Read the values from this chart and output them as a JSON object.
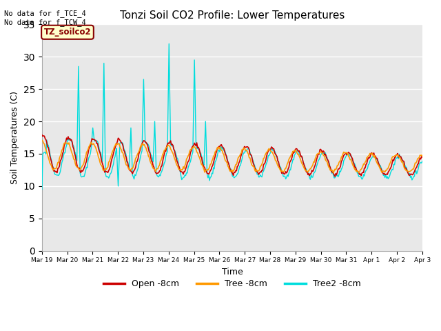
{
  "title": "Tonzi Soil CO2 Profile: Lower Temperatures",
  "xlabel": "Time",
  "ylabel": "Soil Temperatures (C)",
  "ylim": [
    0,
    35
  ],
  "yticks": [
    0,
    5,
    10,
    15,
    20,
    25,
    30,
    35
  ],
  "annotation_text": "No data for f_TCE_4\nNo data for f_TCW_4",
  "legend_label_text": "TZ_soilco2",
  "legend_entries": [
    "Open -8cm",
    "Tree -8cm",
    "Tree2 -8cm"
  ],
  "open_color": "#cc0000",
  "tree_color": "#ff9900",
  "tree2_color": "#00dddd",
  "background_color": "#e8e8e8",
  "fig_bg": "#ffffff",
  "n_points": 480,
  "day_labels": [
    "Mar 19",
    "Mar 20",
    "Mar 21",
    "Mar 22",
    "Mar 23",
    "Mar 24",
    "Mar 25",
    "Mar 26",
    "Mar 27",
    "Mar 28",
    "Mar 29",
    "Mar 30",
    "Mar 31",
    "Apr 1",
    "Apr 2",
    "Apr 3"
  ]
}
